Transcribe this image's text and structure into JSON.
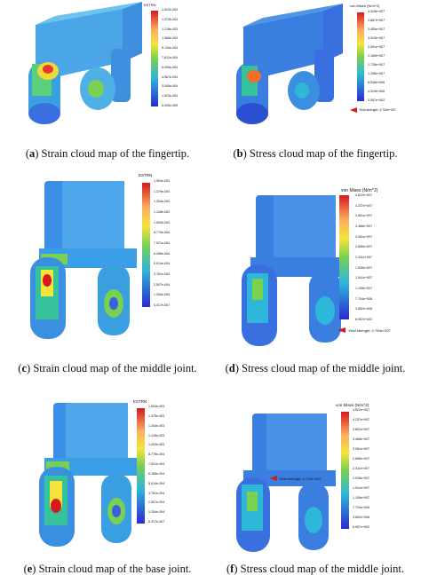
{
  "panels": [
    {
      "id": "a",
      "label": "a",
      "caption": "Strain cloud map of the fingertip.",
      "legend_title": "ESTRN",
      "legend_values": [
        "1.522e-003",
        "1.370e-003",
        "1.218e-003",
        "1.066e-003",
        "9.134e-004",
        "7.612e-004",
        "6.090e-004",
        "4.567e-004",
        "3.045e-004",
        "1.523e-004",
        "6.000e-009"
      ],
      "yield_label": ""
    },
    {
      "id": "b",
      "label": "b",
      "caption": "Stress cloud map of the fingertip.",
      "legend_title": "von Mises (N/m^2)",
      "legend_values": [
        "4.319e+007",
        "3.887e+007",
        "3.455e+007",
        "3.023e+007",
        "2.591e+007",
        "2.160e+007",
        "1.728e+007",
        "1.296e+007",
        "8.638e+006",
        "4.319e+006",
        "3.087e+002"
      ],
      "yield_label": "Yield strength: 4.700e+007"
    },
    {
      "id": "c",
      "label": "c",
      "caption": "Strain cloud map of the middle joint.",
      "legend_title": "ESTRN",
      "legend_values": [
        "1.504e-003",
        "1.379e-003",
        "1.254e-003",
        "1.128e-003",
        "1.003e-003",
        "8.775e-004",
        "7.521e-004",
        "6.268e-004",
        "5.014e-004",
        "3.761e-004",
        "2.507e-004",
        "1.254e-004",
        "5.317e-007"
      ],
      "yield_label": ""
    },
    {
      "id": "d",
      "label": "d",
      "caption": "Stress cloud map of the middle joint.",
      "legend_title": "von Mises (N/m^2)",
      "legend_values": [
        "4.622e+007",
        "4.237e+007",
        "3.851e+007",
        "3.466e+007",
        "3.081e+007",
        "2.696e+007",
        "2.311e+007",
        "1.926e+007",
        "1.541e+007",
        "1.155e+007",
        "7.704e+006",
        "3.852e+006",
        "6.957e+002"
      ],
      "yield_label": "Yield strength: 4.700e+007"
    },
    {
      "id": "e",
      "label": "e",
      "caption": "Strain cloud map of the base joint.",
      "legend_title": "ESTRN",
      "legend_values": [
        "1.504e-003",
        "1.379e-003",
        "1.254e-003",
        "1.128e-003",
        "1.003e-003",
        "8.775e-004",
        "7.521e-004",
        "6.268e-004",
        "5.014e-004",
        "3.761e-004",
        "2.507e-004",
        "1.254e-004",
        "5.317e-007"
      ],
      "yield_label": ""
    },
    {
      "id": "f",
      "label": "f",
      "caption": "Stress cloud map of the middle joint.",
      "legend_title": "von Mises (N/m^2)",
      "legend_values": [
        "4.622e+007",
        "4.237e+007",
        "3.851e+007",
        "3.466e+007",
        "3.081e+007",
        "2.696e+007",
        "2.311e+007",
        "1.926e+007",
        "1.541e+007",
        "1.155e+007",
        "7.704e+006",
        "3.852e+006",
        "6.957e+002"
      ],
      "yield_label": "Yield strength: 4.700e+007"
    }
  ],
  "colors": {
    "colormap": [
      "#d7191c",
      "#f46d2b",
      "#fdae61",
      "#f5e43a",
      "#c6e93f",
      "#7ad151",
      "#36c29b",
      "#2fb7d9",
      "#3a8fe0",
      "#3a5fe0",
      "#2b2bd0"
    ]
  }
}
